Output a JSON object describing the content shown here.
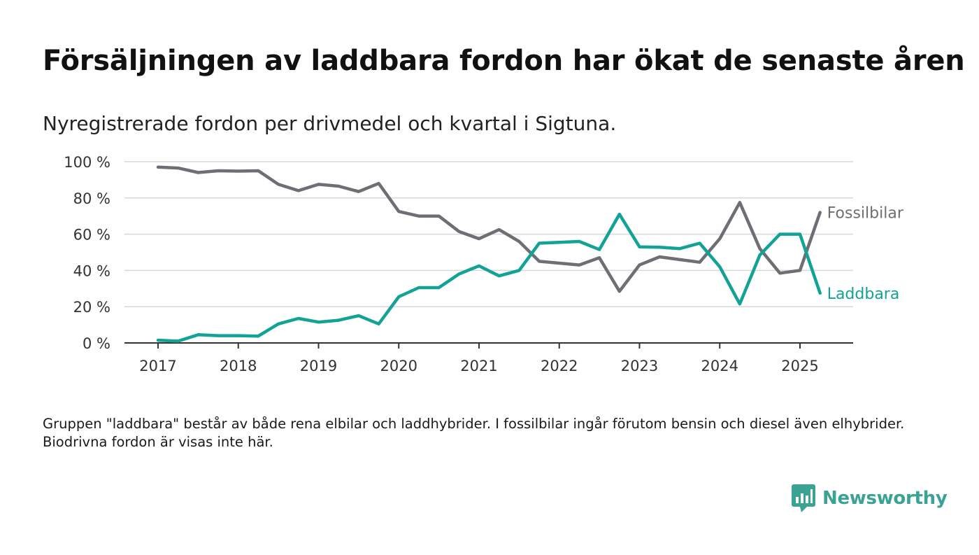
{
  "title": "Försäljningen av laddbara fordon har ökat de senaste åren",
  "subtitle": "Nyregistrerade fordon per drivmedel och kvartal i Sigtuna.",
  "note": "Gruppen \"laddbara\" består av både rena elbilar och laddhybrider. I fossilbilar ingår förutom bensin och diesel även elhybrider. Biodrivna fordon är visas inte här.",
  "logo_text": "Newsworthy",
  "colors": {
    "fossil": "#6f6e74",
    "laddbara": "#13a396",
    "grid": "#d9d9d9",
    "axis": "#333333",
    "logo": "#3aa394"
  },
  "chart_data": {
    "type": "line",
    "x_ticks": [
      2017,
      2018,
      2019,
      2020,
      2021,
      2022,
      2023,
      2024,
      2025
    ],
    "y_ticks": [
      0,
      20,
      40,
      60,
      80,
      100
    ],
    "y_tick_labels": [
      "0 %",
      "20 %",
      "40 %",
      "60 %",
      "80 %",
      "100 %"
    ],
    "ylim": [
      0,
      100
    ],
    "grid": true,
    "quarters": [
      "2017 Q1",
      "2017 Q2",
      "2017 Q3",
      "2017 Q4",
      "2018 Q1",
      "2018 Q2",
      "2018 Q3",
      "2018 Q4",
      "2019 Q1",
      "2019 Q2",
      "2019 Q3",
      "2019 Q4",
      "2020 Q1",
      "2020 Q2",
      "2020 Q3",
      "2020 Q4",
      "2021 Q1",
      "2021 Q2",
      "2021 Q3",
      "2021 Q4",
      "2022 Q1",
      "2022 Q2",
      "2022 Q3",
      "2022 Q4",
      "2023 Q1",
      "2023 Q2",
      "2023 Q3",
      "2023 Q4",
      "2024 Q1",
      "2024 Q2",
      "2024 Q3",
      "2024 Q4",
      "2025 Q1",
      "2025 Q2"
    ],
    "series": [
      {
        "name": "Fossilbilar",
        "color": "#6f6e74",
        "values": [
          97,
          96.5,
          94,
          95,
          94.8,
          95,
          87.5,
          84,
          87.5,
          86.5,
          83.5,
          88,
          72.5,
          70,
          70,
          61.5,
          57.5,
          62.5,
          56,
          45,
          44,
          43,
          47,
          28.5,
          43,
          47.5,
          46,
          44.5,
          57.5,
          77.5,
          52,
          38.5,
          40,
          72
        ]
      },
      {
        "name": "Laddbara",
        "color": "#13a396",
        "values": [
          1.5,
          1,
          4.5,
          4,
          4,
          3.8,
          10.5,
          13.5,
          11.5,
          12.5,
          15,
          10.5,
          25.5,
          30.5,
          30.5,
          38,
          42.5,
          37,
          40,
          55,
          55.5,
          56,
          51.5,
          71,
          53,
          52.8,
          52,
          55,
          42,
          21.5,
          48.5,
          60,
          60,
          27.5
        ]
      }
    ]
  }
}
